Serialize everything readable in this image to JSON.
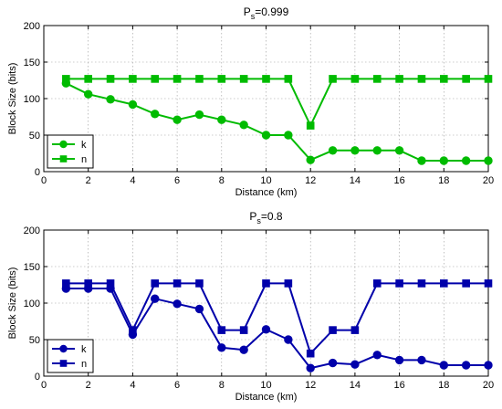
{
  "chart_data": [
    {
      "type": "line",
      "title_main": "P",
      "title_sub": "s",
      "title_rest": "=0.999",
      "xlabel": "Distance (km)",
      "ylabel": "Block Size (bits)",
      "xlim": [
        0,
        20
      ],
      "ylim": [
        0,
        200
      ],
      "xticks": [
        "0",
        "2",
        "4",
        "6",
        "8",
        "10",
        "12",
        "14",
        "16",
        "18",
        "20"
      ],
      "yticks": [
        "0",
        "50",
        "100",
        "150",
        "200"
      ],
      "grid": true,
      "legend_position": "bottom-left",
      "color": "#00bb00",
      "x": [
        1,
        2,
        3,
        4,
        5,
        6,
        7,
        8,
        9,
        10,
        11,
        12,
        13,
        14,
        15,
        16,
        17,
        18,
        19,
        20
      ],
      "series": [
        {
          "name": "k",
          "marker": "circle",
          "values": [
            121,
            106,
            99,
            92,
            79,
            71,
            78,
            71,
            64,
            50,
            50,
            16,
            29,
            29,
            29,
            29,
            15,
            15,
            15,
            15
          ]
        },
        {
          "name": "n",
          "marker": "square",
          "values": [
            127,
            127,
            127,
            127,
            127,
            127,
            127,
            127,
            127,
            127,
            127,
            63,
            127,
            127,
            127,
            127,
            127,
            127,
            127,
            127
          ]
        }
      ]
    },
    {
      "type": "line",
      "title_main": "P",
      "title_sub": "s",
      "title_rest": "=0.8",
      "xlabel": "Distance (km)",
      "ylabel": "Block Size (bits)",
      "xlim": [
        0,
        20
      ],
      "ylim": [
        0,
        200
      ],
      "xticks": [
        "0",
        "2",
        "4",
        "6",
        "8",
        "10",
        "12",
        "14",
        "16",
        "18",
        "20"
      ],
      "yticks": [
        "0",
        "50",
        "100",
        "150",
        "200"
      ],
      "grid": true,
      "legend_position": "bottom-left",
      "color": "#0000aa",
      "x": [
        1,
        2,
        3,
        4,
        5,
        6,
        7,
        8,
        9,
        10,
        11,
        12,
        13,
        14,
        15,
        16,
        17,
        18,
        19,
        20
      ],
      "series": [
        {
          "name": "k",
          "marker": "circle",
          "values": [
            120,
            120,
            120,
            57,
            106,
            99,
            92,
            39,
            36,
            64,
            50,
            11,
            18,
            16,
            29,
            22,
            22,
            15,
            15,
            15
          ]
        },
        {
          "name": "n",
          "marker": "square",
          "values": [
            127,
            127,
            127,
            63,
            127,
            127,
            127,
            63,
            63,
            127,
            127,
            31,
            63,
            63,
            127,
            127,
            127,
            127,
            127,
            127
          ]
        }
      ]
    }
  ]
}
